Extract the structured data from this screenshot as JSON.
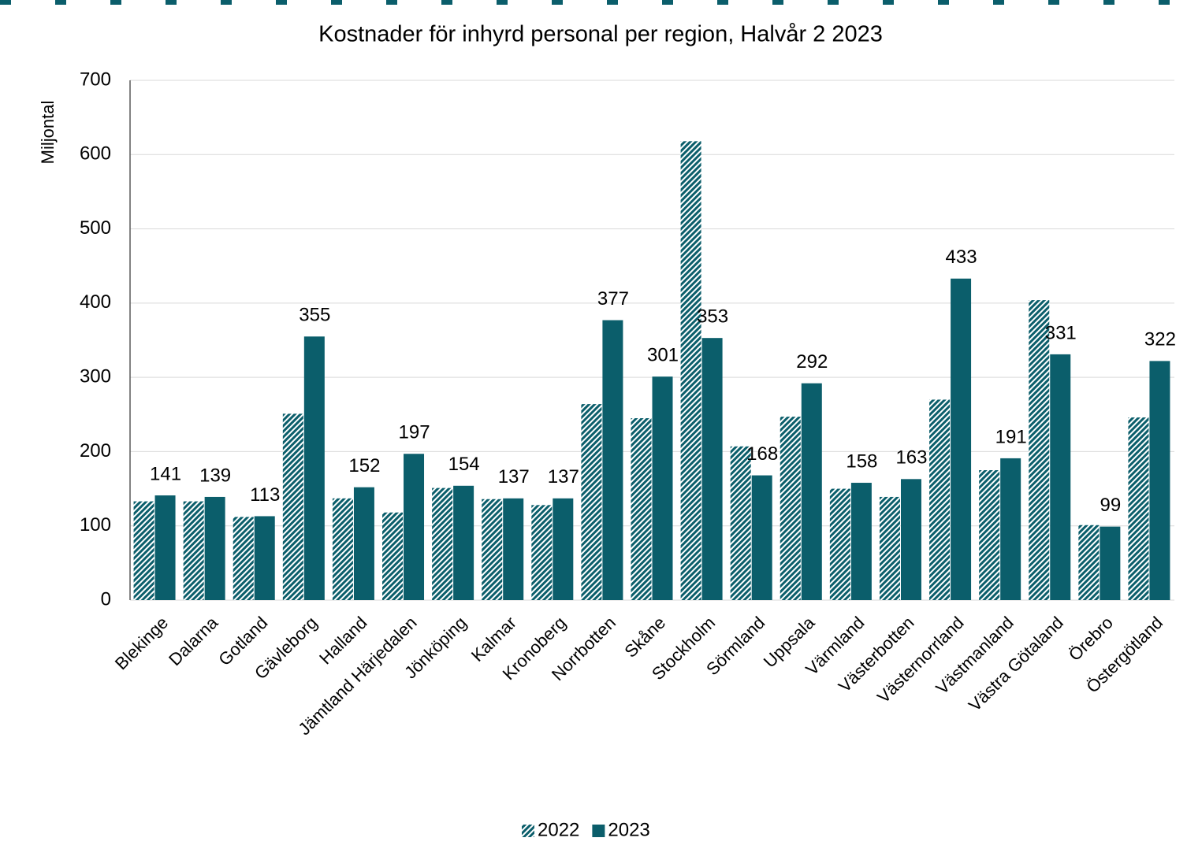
{
  "chart_data": {
    "type": "bar",
    "title": "Kostnader för inhyrd personal per region, Halvår 2 2023",
    "y_label": "Miljontal",
    "categories": [
      "Blekinge",
      "Dalarna",
      "Gotland",
      "Gävleborg",
      "Halland",
      "Jämtland Härjedalen",
      "Jönköping",
      "Kalmar",
      "Kronoberg",
      "Norrbotten",
      "Skåne",
      "Stockholm",
      "Sörmland",
      "Uppsala",
      "Värmland",
      "Västerbotten",
      "Västernorrland",
      "Västmanland",
      "Västra Götaland",
      "Örebro",
      "Östergötland"
    ],
    "series": [
      {
        "name": "2022",
        "color": "#0b5e6b",
        "pattern": "hatch",
        "data_labels": false,
        "values": [
          133,
          133,
          112,
          251,
          137,
          118,
          151,
          136,
          128,
          264,
          245,
          618,
          207,
          247,
          150,
          139,
          270,
          175,
          404,
          101,
          246
        ]
      },
      {
        "name": "2023",
        "color": "#0b5e6b",
        "pattern": "solid",
        "data_labels": true,
        "values": [
          141,
          139,
          113,
          355,
          152,
          197,
          154,
          137,
          137,
          377,
          301,
          353,
          168,
          292,
          158,
          163,
          433,
          191,
          331,
          99,
          322
        ]
      }
    ],
    "ylim": [
      0,
      700
    ],
    "yticks": [
      0,
      100,
      200,
      300,
      400,
      500,
      600,
      700
    ],
    "grid": true,
    "legend": "bottom"
  }
}
